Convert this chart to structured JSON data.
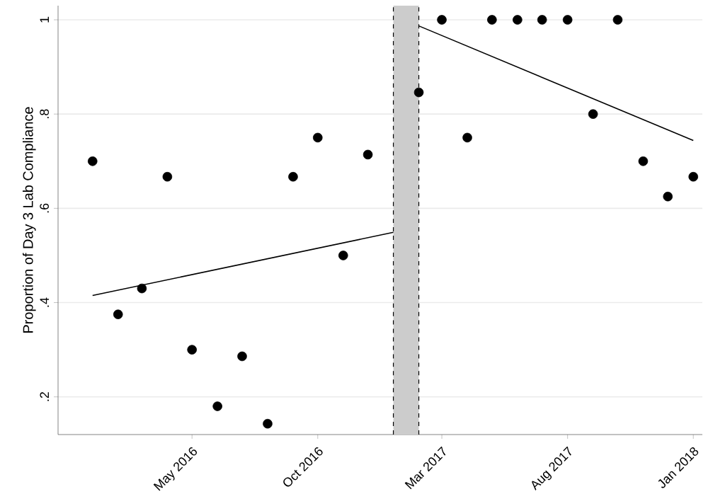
{
  "chart_data": {
    "type": "scatter",
    "ylabel": "Proportion of Day 3 Lab Compliance",
    "xlim": [
      "2015-11-20",
      "2018-01-12"
    ],
    "ylim": [
      0.12,
      1.03
    ],
    "xticks": [
      {
        "value": "2016-05",
        "label": "May 2016"
      },
      {
        "value": "2016-10",
        "label": "Oct 2016"
      },
      {
        "value": "2017-03",
        "label": "Mar 2017"
      },
      {
        "value": "2017-08",
        "label": "Aug 2017"
      },
      {
        "value": "2018-01",
        "label": "Jan 2018"
      }
    ],
    "yticks": [
      {
        "value": 0.2,
        "label": ".2"
      },
      {
        "value": 0.4,
        "label": ".4"
      },
      {
        "value": 0.6,
        "label": ".6"
      },
      {
        "value": 0.8,
        "label": ".8"
      },
      1
    ],
    "grid": "y",
    "series": [
      {
        "color": "#000000",
        "marker": "circle",
        "x": [
          "2016-01",
          "2016-02",
          "2016-03",
          "2016-04",
          "2016-05",
          "2016-06",
          "2016-07",
          "2016-08",
          "2016-09",
          "2016-10",
          "2016-11",
          "2016-12",
          "2017-02",
          "2017-03",
          "2017-04",
          "2017-05",
          "2017-06",
          "2017-07",
          "2017-08",
          "2017-09",
          "2017-10",
          "2017-11",
          "2017-12",
          "2018-01"
        ],
        "values": [
          0.7,
          0.375,
          0.43,
          0.667,
          0.3,
          0.18,
          0.286,
          0.143,
          0.667,
          0.75,
          0.5,
          0.714,
          0.846,
          1,
          0.75,
          1,
          1,
          1,
          1,
          0.8,
          1,
          0.7,
          0.625,
          0.667
        ]
      },
      {
        "type": "line",
        "color": "#000000",
        "marker": "none",
        "line_style": "solid",
        "x": [
          "2016-01",
          "2017-01"
        ],
        "values": [
          0.415,
          0.549
        ]
      },
      {
        "type": "line",
        "color": "#000000",
        "marker": "none",
        "line_style": "solid",
        "x": [
          "2017-02",
          "2018-01"
        ],
        "values": [
          0.987,
          0.744
        ]
      }
    ],
    "bands": [
      {
        "axis": "x",
        "from": "2017-01",
        "to": "2017-02",
        "color": "#cccccc"
      }
    ],
    "ref_lines": [
      {
        "axis": "x",
        "value": "2017-01",
        "color": "#000000",
        "line_style": "dashed"
      },
      {
        "axis": "x",
        "value": "2017-02",
        "color": "#000000",
        "line_style": "dashed"
      }
    ]
  }
}
